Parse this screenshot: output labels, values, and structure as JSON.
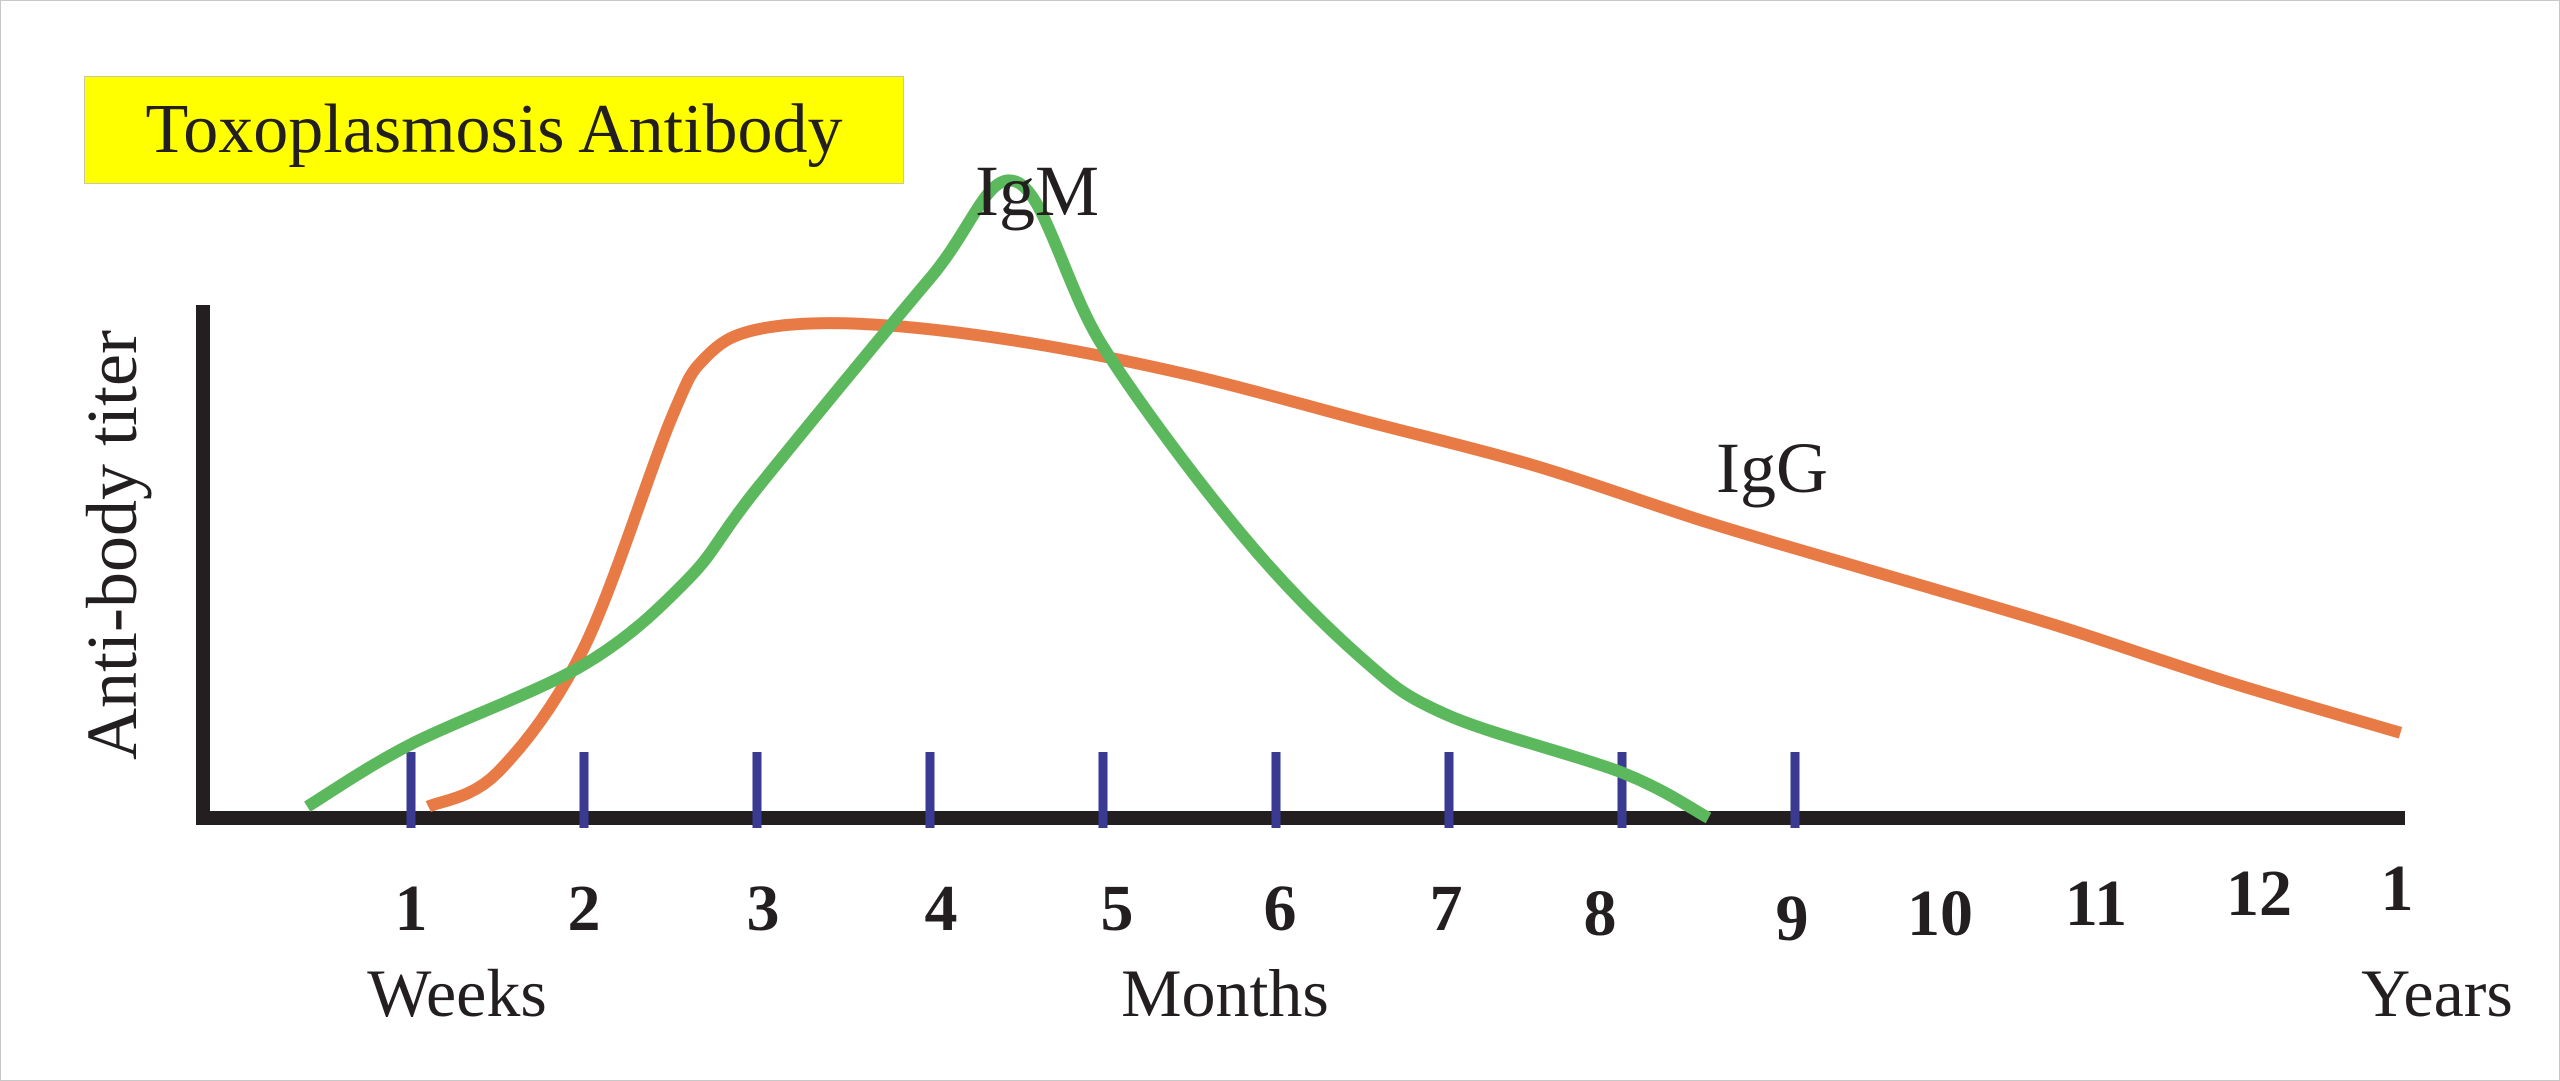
{
  "chart_data": {
    "type": "line",
    "title": "Toxoplasmosis Antibody",
    "ylabel": "Anti-body titer",
    "x_tick_labels": [
      "1",
      "2",
      "3",
      "4",
      "5",
      "6",
      "7",
      "8",
      "9",
      "10",
      "11",
      "12",
      "1"
    ],
    "x_unit_labels": [
      "Weeks",
      "Months",
      "Years"
    ],
    "grid": false,
    "legend": "none",
    "series": [
      {
        "name": "IgM",
        "color": "#5cb85c",
        "x": [
          0.4,
          1,
          2,
          2.6,
          3,
          4,
          4.5,
          5,
          5.8,
          6.5,
          7,
          8,
          8.5
        ],
        "y": [
          0.02,
          0.13,
          0.27,
          0.42,
          0.58,
          0.95,
          1.12,
          0.83,
          0.5,
          0.28,
          0.18,
          0.08,
          0.0
        ]
      },
      {
        "name": "IgG",
        "color": "#e87a46",
        "x": [
          1.1,
          1.5,
          2,
          2.5,
          2.7,
          3,
          3.6,
          4.5,
          5.5,
          6.5,
          7.5,
          8.5,
          9.5,
          10.5,
          11.5,
          12.5
        ],
        "y": [
          0.02,
          0.08,
          0.3,
          0.7,
          0.81,
          0.86,
          0.87,
          0.84,
          0.78,
          0.7,
          0.62,
          0.52,
          0.43,
          0.34,
          0.24,
          0.15
        ]
      }
    ]
  }
}
